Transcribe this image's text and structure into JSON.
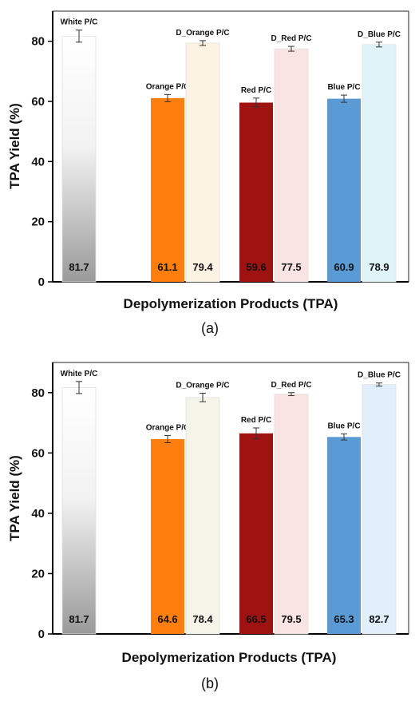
{
  "chart_data": [
    {
      "type": "bar",
      "caption": "(a)",
      "xlabel": "Depolymerization Products (TPA)",
      "ylabel": "TPA Yield (%)",
      "ylim": [
        0,
        90
      ],
      "yticks": [
        0,
        20,
        40,
        60,
        80
      ],
      "grid": false,
      "series": [
        {
          "name": "White P/C",
          "value": 81.7,
          "label": "81.7",
          "error": 2.0,
          "color": "#9a9a9a"
        },
        {
          "name": "Orange P/C",
          "value": 61.1,
          "label": "61.1",
          "error": 1.2,
          "color": "#ff7f0e"
        },
        {
          "name": "D_Orange P/C",
          "value": 79.4,
          "label": "79.4",
          "error": 0.8,
          "color": "#fdf3e3"
        },
        {
          "name": "Red P/C",
          "value": 59.6,
          "label": "59.6",
          "error": 1.5,
          "color": "#9e1212"
        },
        {
          "name": "D_Red P/C",
          "value": 77.5,
          "label": "77.5",
          "error": 0.8,
          "color": "#f9e3e3"
        },
        {
          "name": "Blue P/C",
          "value": 60.9,
          "label": "60.9",
          "error": 1.2,
          "color": "#5b9bd5"
        },
        {
          "name": "D_Blue P/C",
          "value": 78.9,
          "label": "78.9",
          "error": 0.8,
          "color": "#dff3f8"
        }
      ]
    },
    {
      "type": "bar",
      "caption": "(b)",
      "xlabel": "Depolymerization Products (TPA)",
      "ylabel": "TPA Yield (%)",
      "ylim": [
        0,
        90
      ],
      "yticks": [
        0,
        20,
        40,
        60,
        80
      ],
      "grid": false,
      "series": [
        {
          "name": "White P/C",
          "value": 81.7,
          "label": "81.7",
          "error": 2.0,
          "color": "#9a9a9a"
        },
        {
          "name": "Orange P/C",
          "value": 64.6,
          "label": "64.6",
          "error": 1.2,
          "color": "#ff7f0e"
        },
        {
          "name": "D_Orange P/C",
          "value": 78.4,
          "label": "78.4",
          "error": 1.4,
          "color": "#f4f5e8"
        },
        {
          "name": "Red P/C",
          "value": 66.5,
          "label": "66.5",
          "error": 1.8,
          "color": "#9e1212"
        },
        {
          "name": "D_Red P/C",
          "value": 79.5,
          "label": "79.5",
          "error": 0.5,
          "color": "#f9e3e3"
        },
        {
          "name": "Blue P/C",
          "value": 65.3,
          "label": "65.3",
          "error": 1.0,
          "color": "#5b9bd5"
        },
        {
          "name": "D_Blue P/C",
          "value": 82.7,
          "label": "82.7",
          "error": 0.5,
          "color": "#e1eefc"
        }
      ]
    }
  ]
}
